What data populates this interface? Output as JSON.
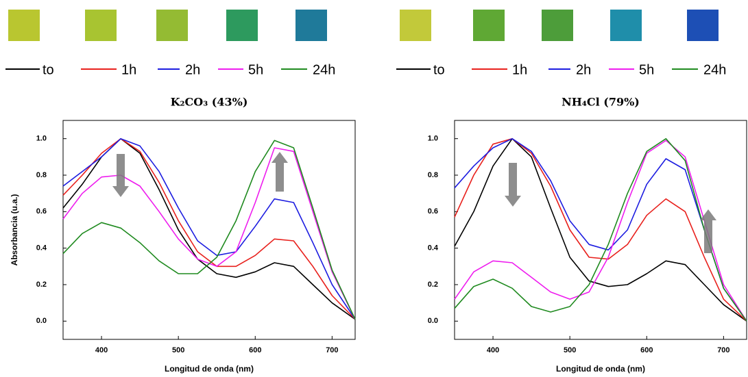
{
  "chart_data": [
    {
      "type": "line",
      "title": "K₂CO₃ (43%)",
      "x_label": "Longitud de onda (nm)",
      "y_label": "Absorbancia (u.a.)",
      "x": [
        350,
        375,
        400,
        425,
        450,
        475,
        500,
        525,
        550,
        575,
        600,
        625,
        650,
        675,
        700,
        730
      ],
      "series": [
        {
          "name": "to",
          "color": "#000000",
          "values": [
            0.62,
            0.75,
            0.9,
            1.0,
            0.92,
            0.72,
            0.5,
            0.34,
            0.26,
            0.24,
            0.27,
            0.32,
            0.3,
            0.2,
            0.1,
            0.01
          ]
        },
        {
          "name": "1h",
          "color": "#e8201c",
          "values": [
            0.69,
            0.8,
            0.92,
            1.0,
            0.93,
            0.76,
            0.55,
            0.38,
            0.3,
            0.3,
            0.36,
            0.45,
            0.44,
            0.3,
            0.14,
            0.01
          ]
        },
        {
          "name": "2h",
          "color": "#1c1ce0",
          "values": [
            0.74,
            0.82,
            0.9,
            1.0,
            0.96,
            0.82,
            0.62,
            0.44,
            0.36,
            0.38,
            0.52,
            0.67,
            0.65,
            0.43,
            0.2,
            0.01
          ]
        },
        {
          "name": "5h",
          "color": "#ee1cee",
          "values": [
            0.56,
            0.7,
            0.79,
            0.8,
            0.74,
            0.6,
            0.45,
            0.34,
            0.3,
            0.38,
            0.65,
            0.95,
            0.93,
            0.6,
            0.27,
            0.01
          ]
        },
        {
          "name": "24h",
          "color": "#1f8a1f",
          "values": [
            0.37,
            0.48,
            0.54,
            0.51,
            0.43,
            0.33,
            0.26,
            0.26,
            0.35,
            0.55,
            0.82,
            0.99,
            0.95,
            0.62,
            0.28,
            0.01
          ]
        }
      ],
      "xlim": [
        350,
        730
      ],
      "xticks": [
        400,
        500,
        600,
        700
      ],
      "ylim": [
        -0.1,
        1.1
      ],
      "yticks": [
        {
          "value": 0,
          "label": "0.0"
        },
        0.2,
        0.4,
        0.6,
        0.8,
        {
          "value": 1,
          "label": "1.0"
        }
      ]
    },
    {
      "type": "line",
      "title": "NH₄Cl (79%)",
      "x_label": "Longitud de onda (nm)",
      "x": [
        350,
        375,
        400,
        425,
        450,
        475,
        500,
        525,
        550,
        575,
        600,
        625,
        650,
        675,
        700,
        730
      ],
      "series": [
        {
          "name": "to",
          "color": "#000000",
          "values": [
            0.41,
            0.6,
            0.85,
            1.0,
            0.9,
            0.62,
            0.35,
            0.22,
            0.19,
            0.2,
            0.26,
            0.33,
            0.31,
            0.2,
            0.09,
            0.0
          ]
        },
        {
          "name": "1h",
          "color": "#e8201c",
          "values": [
            0.57,
            0.8,
            0.97,
            1.0,
            0.92,
            0.74,
            0.5,
            0.35,
            0.34,
            0.42,
            0.58,
            0.67,
            0.6,
            0.35,
            0.12,
            0.0
          ]
        },
        {
          "name": "2h",
          "color": "#1c1ce0",
          "values": [
            0.73,
            0.85,
            0.95,
            1.0,
            0.93,
            0.77,
            0.55,
            0.42,
            0.39,
            0.5,
            0.75,
            0.89,
            0.83,
            0.5,
            0.18,
            0.0
          ]
        },
        {
          "name": "5h",
          "color": "#ee1cee",
          "values": [
            0.12,
            0.27,
            0.33,
            0.32,
            0.24,
            0.16,
            0.12,
            0.16,
            0.35,
            0.65,
            0.92,
            0.99,
            0.9,
            0.55,
            0.2,
            0.0
          ]
        },
        {
          "name": "24h",
          "color": "#1f8a1f",
          "values": [
            0.07,
            0.19,
            0.23,
            0.18,
            0.08,
            0.05,
            0.08,
            0.2,
            0.42,
            0.7,
            0.93,
            1.0,
            0.88,
            0.5,
            0.18,
            0.0
          ]
        }
      ],
      "xlim": [
        350,
        730
      ],
      "xticks": [
        400,
        500,
        600,
        700
      ],
      "ylim": [
        -0.1,
        1.1
      ],
      "yticks": [
        {
          "value": 0,
          "label": "0.0"
        },
        0.2,
        0.4,
        0.6,
        0.8,
        {
          "value": 1,
          "label": "1.0"
        }
      ]
    }
  ]
}
